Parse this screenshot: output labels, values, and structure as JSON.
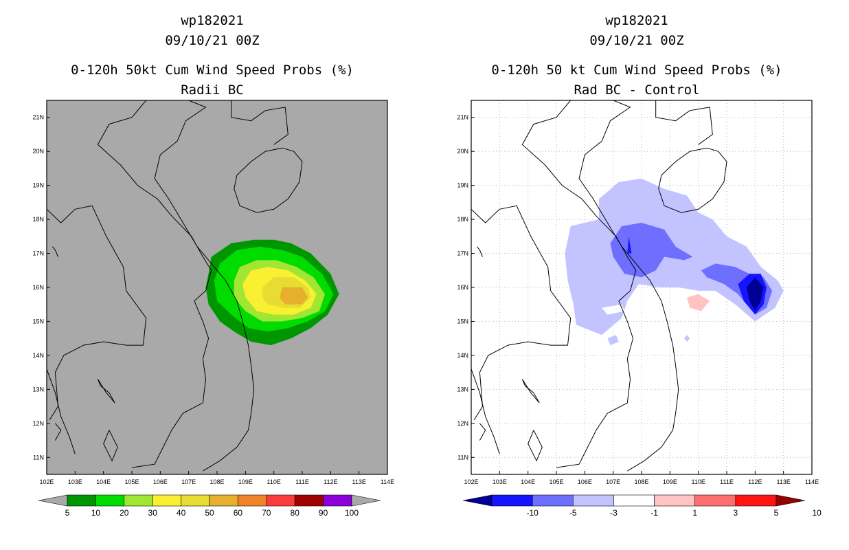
{
  "panels": [
    {
      "id": "left",
      "title_lines": [
        "wp182021",
        "09/10/21 00Z",
        "0-120h 50kt Cum Wind Speed Probs (%)",
        "Radii BC"
      ],
      "chart_data": {
        "type": "heatmap",
        "title": "0-120h 50kt Cum Wind Speed Probs (%)",
        "subtitle": "Radii BC",
        "storm": "wp182021",
        "time": "09/10/21 00Z",
        "x_ticks": [
          "102E",
          "103E",
          "104E",
          "105E",
          "106E",
          "107E",
          "108E",
          "109E",
          "110E",
          "111E",
          "112E",
          "113E",
          "114E"
        ],
        "y_ticks": [
          "11N",
          "12N",
          "13N",
          "14N",
          "15N",
          "16N",
          "17N",
          "18N",
          "19N",
          "20N",
          "21N"
        ],
        "xlim": [
          102,
          114
        ],
        "ylim": [
          10.5,
          21.5
        ],
        "background": "#a9a9a9",
        "legend_levels": [
          "5",
          "10",
          "20",
          "30",
          "40",
          "50",
          "60",
          "70",
          "80",
          "90",
          "100"
        ],
        "legend_colors": [
          "#009600",
          "#00dc00",
          "#a0e632",
          "#faf032",
          "#e6dc32",
          "#e6af2d",
          "#f08228",
          "#fa3c3c",
          "#a00000",
          "#8c00dc"
        ],
        "contours": [
          {
            "level": 5,
            "color": "#009600",
            "points": [
              [
                107.7,
                16.4
              ],
              [
                107.8,
                16.9
              ],
              [
                108.5,
                17.3
              ],
              [
                109.3,
                17.4
              ],
              [
                110.0,
                17.4
              ],
              [
                110.6,
                17.3
              ],
              [
                111.3,
                17.0
              ],
              [
                112.0,
                16.4
              ],
              [
                112.3,
                15.8
              ],
              [
                111.9,
                15.2
              ],
              [
                111.3,
                14.8
              ],
              [
                110.6,
                14.5
              ],
              [
                109.9,
                14.3
              ],
              [
                109.2,
                14.4
              ],
              [
                108.6,
                14.7
              ],
              [
                108.1,
                15.0
              ],
              [
                107.7,
                15.5
              ],
              [
                107.6,
                16.0
              ]
            ]
          },
          {
            "level": 10,
            "color": "#00dc00",
            "points": [
              [
                107.9,
                16.2
              ],
              [
                108.1,
                16.7
              ],
              [
                108.7,
                17.1
              ],
              [
                109.5,
                17.2
              ],
              [
                110.3,
                17.1
              ],
              [
                111.0,
                16.9
              ],
              [
                111.7,
                16.4
              ],
              [
                112.1,
                15.8
              ],
              [
                111.8,
                15.3
              ],
              [
                111.2,
                15.0
              ],
              [
                110.5,
                14.8
              ],
              [
                109.8,
                14.7
              ],
              [
                109.1,
                14.8
              ],
              [
                108.5,
                15.2
              ],
              [
                108.0,
                15.6
              ]
            ]
          },
          {
            "level": 20,
            "color": "#a0e632",
            "points": [
              [
                108.6,
                16.2
              ],
              [
                108.8,
                16.6
              ],
              [
                109.4,
                16.8
              ],
              [
                110.1,
                16.8
              ],
              [
                110.8,
                16.6
              ],
              [
                111.4,
                16.3
              ],
              [
                111.8,
                15.8
              ],
              [
                111.6,
                15.3
              ],
              [
                111.0,
                15.1
              ],
              [
                110.3,
                15.0
              ],
              [
                109.6,
                15.0
              ],
              [
                109.0,
                15.3
              ],
              [
                108.6,
                15.7
              ]
            ]
          },
          {
            "level": 30,
            "color": "#faf032",
            "points": [
              [
                108.9,
                16.1
              ],
              [
                109.2,
                16.5
              ],
              [
                109.8,
                16.6
              ],
              [
                110.5,
                16.5
              ],
              [
                111.1,
                16.2
              ],
              [
                111.5,
                15.8
              ],
              [
                111.3,
                15.4
              ],
              [
                110.7,
                15.2
              ],
              [
                110.0,
                15.2
              ],
              [
                109.4,
                15.3
              ],
              [
                109.0,
                15.7
              ]
            ]
          },
          {
            "level": 40,
            "color": "#e6dc32",
            "points": [
              [
                109.6,
                16.0
              ],
              [
                110.0,
                16.3
              ],
              [
                110.7,
                16.3
              ],
              [
                111.2,
                16.0
              ],
              [
                111.3,
                15.7
              ],
              [
                110.9,
                15.4
              ],
              [
                110.3,
                15.4
              ],
              [
                109.8,
                15.5
              ],
              [
                109.6,
                15.7
              ]
            ]
          },
          {
            "level": 50,
            "color": "#e6af2d",
            "points": [
              [
                110.3,
                16.0
              ],
              [
                111.0,
                16.0
              ],
              [
                111.2,
                15.7
              ],
              [
                111.0,
                15.5
              ],
              [
                110.4,
                15.5
              ],
              [
                110.2,
                15.7
              ]
            ]
          }
        ]
      }
    },
    {
      "id": "right",
      "title_lines": [
        "wp182021",
        "09/10/21 00Z",
        "0-120h 50 kt Cum Wind Speed Probs (%)",
        "Rad BC - Control"
      ],
      "chart_data": {
        "type": "heatmap",
        "title": "0-120h 50 kt Cum Wind Speed Probs (%)",
        "subtitle": "Rad BC - Control",
        "storm": "wp182021",
        "time": "09/10/21 00Z",
        "x_ticks": [
          "102E",
          "103E",
          "104E",
          "105E",
          "106E",
          "107E",
          "108E",
          "109E",
          "110E",
          "111E",
          "112E",
          "113E",
          "114E"
        ],
        "y_ticks": [
          "11N",
          "12N",
          "13N",
          "14N",
          "15N",
          "16N",
          "17N",
          "18N",
          "19N",
          "20N",
          "21N"
        ],
        "xlim": [
          102,
          114
        ],
        "ylim": [
          10.5,
          21.5
        ],
        "background": "#ffffff",
        "grid": true,
        "legend_levels": [
          "-10",
          "-5",
          "-3",
          "-1",
          "1",
          "3",
          "5",
          "10"
        ],
        "legend_colors": [
          "#000096",
          "#1414ff",
          "#6e6eff",
          "#c3c3ff",
          "#ffffff",
          "#ffc3c3",
          "#ff6e6e",
          "#ff1414",
          "#960000"
        ],
        "contours": [
          {
            "level": -1,
            "color": "#c3c3ff",
            "points": [
              [
                105.3,
                17.0
              ],
              [
                105.5,
                17.8
              ],
              [
                106.5,
                18.0
              ],
              [
                106.5,
                18.6
              ],
              [
                107.2,
                19.1
              ],
              [
                108.0,
                19.2
              ],
              [
                108.8,
                18.9
              ],
              [
                109.6,
                18.7
              ],
              [
                110.0,
                18.2
              ],
              [
                110.5,
                18.0
              ],
              [
                111.0,
                17.5
              ],
              [
                111.7,
                17.2
              ],
              [
                112.2,
                16.6
              ],
              [
                112.8,
                16.2
              ],
              [
                113.0,
                15.9
              ],
              [
                112.7,
                15.4
              ],
              [
                112.0,
                15.0
              ],
              [
                111.3,
                15.5
              ],
              [
                110.6,
                15.9
              ],
              [
                110.0,
                15.9
              ],
              [
                109.3,
                16.0
              ],
              [
                108.6,
                16.0
              ],
              [
                107.9,
                16.1
              ],
              [
                107.5,
                15.6
              ],
              [
                107.3,
                15.1
              ],
              [
                106.6,
                14.6
              ],
              [
                105.7,
                14.9
              ],
              [
                105.6,
                15.5
              ],
              [
                105.4,
                16.2
              ]
            ]
          },
          {
            "level": -1,
            "color": "#c3c3ff",
            "points": [
              [
                106.8,
                14.5
              ],
              [
                107.1,
                14.6
              ],
              [
                107.2,
                14.4
              ],
              [
                106.9,
                14.3
              ]
            ]
          },
          {
            "level": -1,
            "color": "#c3c3ff",
            "points": [
              [
                109.5,
                14.5
              ],
              [
                109.6,
                14.6
              ],
              [
                109.7,
                14.5
              ],
              [
                109.6,
                14.4
              ]
            ]
          },
          {
            "level": -3,
            "color": "#6e6eff",
            "points": [
              [
                106.9,
                17.3
              ],
              [
                107.3,
                17.8
              ],
              [
                108.0,
                17.9
              ],
              [
                108.8,
                17.7
              ],
              [
                109.2,
                17.2
              ],
              [
                109.8,
                16.9
              ],
              [
                109.5,
                16.8
              ],
              [
                108.8,
                16.9
              ],
              [
                108.5,
                16.5
              ],
              [
                108.0,
                16.3
              ],
              [
                107.4,
                16.4
              ],
              [
                107.0,
                16.9
              ]
            ]
          },
          {
            "level": -3,
            "color": "#6e6eff",
            "points": [
              [
                110.1,
                16.5
              ],
              [
                110.6,
                16.7
              ],
              [
                111.3,
                16.6
              ],
              [
                111.8,
                16.4
              ],
              [
                112.3,
                16.3
              ],
              [
                112.6,
                15.9
              ],
              [
                112.4,
                15.4
              ],
              [
                112.0,
                15.2
              ],
              [
                111.4,
                15.8
              ],
              [
                110.9,
                16.1
              ],
              [
                110.3,
                16.3
              ]
            ]
          },
          {
            "level": -5,
            "color": "#1414ff",
            "points": [
              [
                111.4,
                16.1
              ],
              [
                111.8,
                16.4
              ],
              [
                112.2,
                16.4
              ],
              [
                112.4,
                16.0
              ],
              [
                112.3,
                15.5
              ],
              [
                112.0,
                15.2
              ],
              [
                111.6,
                15.6
              ]
            ]
          },
          {
            "level": -5,
            "color": "#1414ff",
            "points": [
              [
                107.55,
                17.5
              ],
              [
                107.65,
                17.0
              ],
              [
                107.5,
                17.0
              ]
            ]
          },
          {
            "level": -10,
            "color": "#000096",
            "points": [
              [
                111.7,
                16.0
              ],
              [
                112.0,
                16.3
              ],
              [
                112.3,
                16.0
              ],
              [
                112.2,
                15.6
              ],
              [
                112.0,
                15.3
              ],
              [
                111.8,
                15.6
              ]
            ]
          },
          {
            "level": 1,
            "color": "#ffc3c3",
            "points": [
              [
                109.6,
                15.7
              ],
              [
                110.0,
                15.8
              ],
              [
                110.4,
                15.6
              ],
              [
                110.1,
                15.3
              ],
              [
                109.7,
                15.4
              ]
            ]
          },
          {
            "level": 1,
            "color": "#ffffff",
            "points": [
              [
                106.6,
                15.4
              ],
              [
                107.3,
                15.5
              ],
              [
                107.4,
                15.3
              ],
              [
                106.8,
                15.2
              ]
            ]
          }
        ]
      }
    }
  ]
}
